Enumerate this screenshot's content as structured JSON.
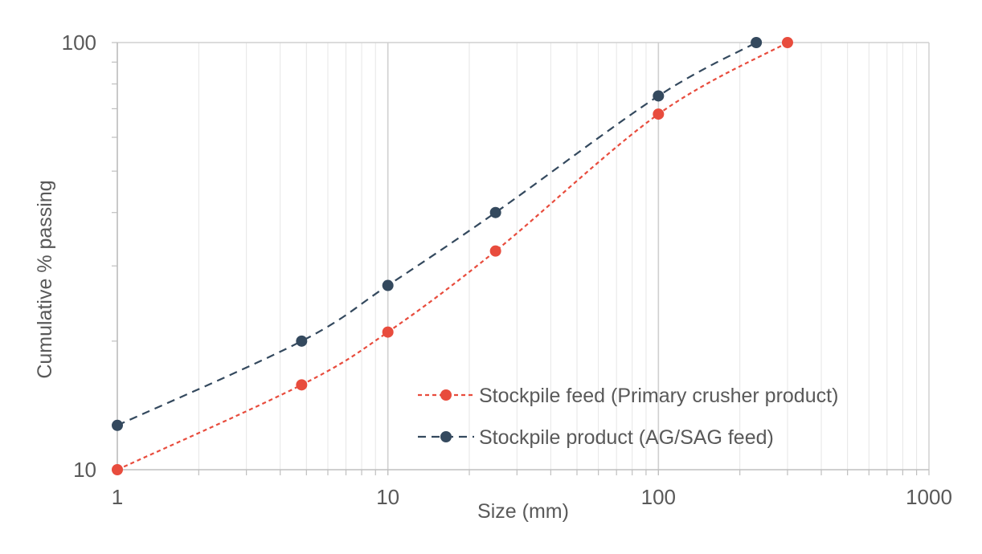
{
  "chart_data": {
    "type": "line",
    "title": "",
    "xlabel": "Size (mm)",
    "ylabel": "Cumulative % passing",
    "xscale": "log",
    "yscale": "log",
    "xlim": [
      1,
      1000
    ],
    "ylim": [
      10,
      100
    ],
    "x_tick_labels": [
      "1",
      "10",
      "100",
      "1000"
    ],
    "y_tick_labels": [
      "10",
      "100"
    ],
    "grid": true,
    "legend_position": "bottom-right",
    "series": [
      {
        "name": "Stockpile feed (Primary crusher product)",
        "color": "#e84c3d",
        "line_style": "dotted",
        "x": [
          1,
          4.8,
          10,
          25,
          100,
          300
        ],
        "y": [
          10,
          15.8,
          21,
          32.5,
          68,
          100
        ]
      },
      {
        "name": "Stockpile product (AG/SAG feed)",
        "color": "#34495e",
        "line_style": "dashed",
        "x": [
          1,
          4.8,
          10,
          25,
          100,
          230
        ],
        "y": [
          12.7,
          20,
          27,
          40,
          75,
          100
        ]
      }
    ]
  }
}
